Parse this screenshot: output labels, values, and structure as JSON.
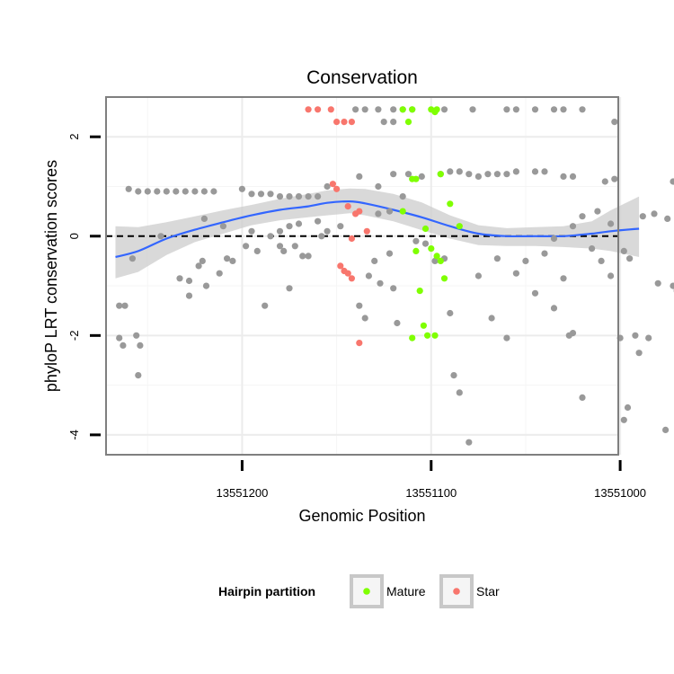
{
  "chart_data": {
    "type": "scatter",
    "title": "Conservation",
    "xlabel": "Genomic Position",
    "ylabel": "phyloP LRT conservation scores",
    "x_reversed": true,
    "xlim": [
      13551272,
      13551001
    ],
    "ylim": [
      -4.4,
      2.8
    ],
    "x_ticks": [
      13551200,
      13551100,
      13551000
    ],
    "x_tick_labels": [
      "13551200",
      "13551100",
      "13551000"
    ],
    "y_ticks": [
      -4,
      -2,
      0,
      2
    ],
    "y_tick_labels": [
      "-4",
      "-2",
      "0",
      "2"
    ],
    "reference_line": {
      "y": 0,
      "style": "dashed"
    },
    "grid": true,
    "legend": {
      "title": "Hairpin partition",
      "placement": "bottom",
      "entries": [
        {
          "label": "Mature",
          "color": "#7fff00"
        },
        {
          "label": "Star",
          "color": "#f8766d"
        }
      ]
    },
    "colors": {
      "other": "#999999",
      "smooth_line": "#3366ff",
      "ribbon": "#cccccc"
    },
    "series": [
      {
        "name": "Other",
        "color": "#999999",
        "points": [
          [
            13551260,
            0.95
          ],
          [
            13551255,
            0.9
          ],
          [
            13551250,
            0.9
          ],
          [
            13551245,
            0.9
          ],
          [
            13551240,
            0.9
          ],
          [
            13551235,
            0.9
          ],
          [
            13551230,
            0.9
          ],
          [
            13551225,
            0.9
          ],
          [
            13551220,
            0.9
          ],
          [
            13551215,
            0.9
          ],
          [
            13551200,
            0.95
          ],
          [
            13551195,
            0.85
          ],
          [
            13551190,
            0.85
          ],
          [
            13551185,
            0.85
          ],
          [
            13551180,
            0.8
          ],
          [
            13551175,
            0.8
          ],
          [
            13551170,
            0.8
          ],
          [
            13551165,
            0.8
          ],
          [
            13551160,
            0.8
          ],
          [
            13551155,
            1.0
          ],
          [
            13551138,
            1.2
          ],
          [
            13551128,
            1.0
          ],
          [
            13551120,
            1.25
          ],
          [
            13551112,
            1.25
          ],
          [
            13551105,
            1.2
          ],
          [
            13551095,
            1.25
          ],
          [
            13551090,
            1.3
          ],
          [
            13551085,
            1.3
          ],
          [
            13551080,
            1.25
          ],
          [
            13551075,
            1.2
          ],
          [
            13551070,
            1.25
          ],
          [
            13551065,
            1.25
          ],
          [
            13551060,
            1.25
          ],
          [
            13551055,
            1.3
          ],
          [
            13551045,
            1.3
          ],
          [
            13551040,
            1.3
          ],
          [
            13551030,
            1.2
          ],
          [
            13551025,
            1.2
          ],
          [
            13551008,
            1.1
          ],
          [
            13551003,
            1.15
          ],
          [
            13551140,
            2.55
          ],
          [
            13551135,
            2.55
          ],
          [
            13551128,
            2.55
          ],
          [
            13551120,
            2.55
          ],
          [
            13551115,
            2.55
          ],
          [
            13551110,
            2.55
          ],
          [
            13551093,
            2.55
          ],
          [
            13551078,
            2.55
          ],
          [
            13551060,
            2.55
          ],
          [
            13551055,
            2.55
          ],
          [
            13551045,
            2.55
          ],
          [
            13551035,
            2.55
          ],
          [
            13551030,
            2.55
          ],
          [
            13551020,
            2.55
          ],
          [
            13551003,
            2.3
          ],
          [
            13551125,
            2.3
          ],
          [
            13551120,
            2.3
          ],
          [
            13551265,
            -2.05
          ],
          [
            13551263,
            -2.2
          ],
          [
            13551256,
            -2.0
          ],
          [
            13551254,
            -2.2
          ],
          [
            13551255,
            -2.8
          ],
          [
            13551265,
            -1.4
          ],
          [
            13551262,
            -1.4
          ],
          [
            13551258,
            -0.45
          ],
          [
            13551243,
            0.0
          ],
          [
            13551233,
            -0.85
          ],
          [
            13551228,
            -1.2
          ],
          [
            13551228,
            -0.9
          ],
          [
            13551223,
            -0.6
          ],
          [
            13551221,
            -0.5
          ],
          [
            13551219,
            -1.0
          ],
          [
            13551212,
            -0.75
          ],
          [
            13551208,
            -0.45
          ],
          [
            13551205,
            -0.5
          ],
          [
            13551198,
            -0.2
          ],
          [
            13551192,
            -0.3
          ],
          [
            13551188,
            -1.4
          ],
          [
            13551180,
            -0.2
          ],
          [
            13551178,
            -0.3
          ],
          [
            13551175,
            -1.05
          ],
          [
            13551172,
            -0.2
          ],
          [
            13551168,
            -0.4
          ],
          [
            13551165,
            -0.4
          ],
          [
            13551158,
            0.0
          ],
          [
            13551155,
            0.1
          ],
          [
            13551220,
            0.35
          ],
          [
            13551210,
            0.2
          ],
          [
            13551195,
            0.1
          ],
          [
            13551185,
            0.0
          ],
          [
            13551180,
            0.1
          ],
          [
            13551175,
            0.2
          ],
          [
            13551170,
            0.25
          ],
          [
            13551160,
            0.3
          ],
          [
            13551148,
            0.2
          ],
          [
            13551138,
            -1.4
          ],
          [
            13551135,
            -1.65
          ],
          [
            13551133,
            -0.8
          ],
          [
            13551130,
            -0.5
          ],
          [
            13551127,
            -0.95
          ],
          [
            13551122,
            -0.35
          ],
          [
            13551120,
            -1.05
          ],
          [
            13551118,
            -1.75
          ],
          [
            13551108,
            -0.1
          ],
          [
            13551103,
            -0.15
          ],
          [
            13551098,
            -0.5
          ],
          [
            13551093,
            -0.45
          ],
          [
            13551090,
            -1.55
          ],
          [
            13551088,
            -2.8
          ],
          [
            13551085,
            -3.15
          ],
          [
            13551080,
            -4.15
          ],
          [
            13551075,
            -0.8
          ],
          [
            13551068,
            -1.65
          ],
          [
            13551065,
            -0.45
          ],
          [
            13551060,
            -2.05
          ],
          [
            13551055,
            -0.75
          ],
          [
            13551050,
            -0.5
          ],
          [
            13551045,
            -1.15
          ],
          [
            13551040,
            -0.35
          ],
          [
            13551035,
            -1.45
          ],
          [
            13551030,
            -0.85
          ],
          [
            13551027,
            -2.0
          ],
          [
            13551025,
            -1.95
          ],
          [
            13551020,
            -3.25
          ],
          [
            13551015,
            -0.25
          ],
          [
            13551010,
            -0.5
          ],
          [
            13551005,
            -0.8
          ],
          [
            13551000,
            -2.05
          ],
          [
            13550998,
            -3.7
          ],
          [
            13550996,
            -3.45
          ],
          [
            13550992,
            -2.0
          ],
          [
            13550990,
            -2.35
          ],
          [
            13550985,
            -2.05
          ],
          [
            13550980,
            -0.95
          ],
          [
            13550976,
            -3.9
          ],
          [
            13550972,
            -1.0
          ],
          [
            13550970,
            -1.1
          ],
          [
            13551035,
            -0.05
          ],
          [
            13551025,
            0.2
          ],
          [
            13551020,
            0.4
          ],
          [
            13551012,
            0.5
          ],
          [
            13551005,
            0.25
          ],
          [
            13550998,
            -0.3
          ],
          [
            13550995,
            -0.45
          ],
          [
            13550988,
            0.4
          ],
          [
            13550982,
            0.45
          ],
          [
            13550975,
            0.35
          ],
          [
            13550972,
            1.1
          ],
          [
            13551128,
            0.45
          ],
          [
            13551122,
            0.5
          ],
          [
            13551115,
            0.8
          ]
        ]
      },
      {
        "name": "Mature",
        "color": "#7fff00",
        "points": [
          [
            13551115,
            2.55
          ],
          [
            13551110,
            2.55
          ],
          [
            13551100,
            2.55
          ],
          [
            13551098,
            2.5
          ],
          [
            13551097,
            2.55
          ],
          [
            13551112,
            2.3
          ],
          [
            13551110,
            1.15
          ],
          [
            13551108,
            1.15
          ],
          [
            13551095,
            1.25
          ],
          [
            13551090,
            0.65
          ],
          [
            13551085,
            0.2
          ],
          [
            13551115,
            0.5
          ],
          [
            13551103,
            0.15
          ],
          [
            13551100,
            -0.25
          ],
          [
            13551097,
            -0.4
          ],
          [
            13551095,
            -0.5
          ],
          [
            13551093,
            -0.85
          ],
          [
            13551108,
            -0.3
          ],
          [
            13551106,
            -1.1
          ],
          [
            13551104,
            -1.8
          ],
          [
            13551102,
            -2.0
          ],
          [
            13551098,
            -2.0
          ],
          [
            13551110,
            -2.05
          ]
        ]
      },
      {
        "name": "Star",
        "color": "#f8766d",
        "points": [
          [
            13551165,
            2.55
          ],
          [
            13551160,
            2.55
          ],
          [
            13551153,
            2.55
          ],
          [
            13551150,
            2.3
          ],
          [
            13551146,
            2.3
          ],
          [
            13551142,
            2.3
          ],
          [
            13551152,
            1.05
          ],
          [
            13551150,
            0.95
          ],
          [
            13551144,
            0.6
          ],
          [
            13551140,
            0.45
          ],
          [
            13551138,
            0.5
          ],
          [
            13551134,
            0.1
          ],
          [
            13551142,
            -0.05
          ],
          [
            13551148,
            -0.6
          ],
          [
            13551146,
            -0.7
          ],
          [
            13551144,
            -0.75
          ],
          [
            13551142,
            -0.85
          ],
          [
            13551138,
            -2.15
          ]
        ]
      }
    ],
    "smooth_line": [
      [
        13551267,
        -0.42
      ],
      [
        13551255,
        -0.3
      ],
      [
        13551240,
        -0.05
      ],
      [
        13551225,
        0.13
      ],
      [
        13551210,
        0.28
      ],
      [
        13551195,
        0.42
      ],
      [
        13551180,
        0.53
      ],
      [
        13551165,
        0.6
      ],
      [
        13551155,
        0.67
      ],
      [
        13551143,
        0.7
      ],
      [
        13551135,
        0.66
      ],
      [
        13551120,
        0.53
      ],
      [
        13551105,
        0.38
      ],
      [
        13551090,
        0.2
      ],
      [
        13551075,
        0.05
      ],
      [
        13551060,
        0.0
      ],
      [
        13551045,
        0.0
      ],
      [
        13551030,
        0.0
      ],
      [
        13551015,
        0.05
      ],
      [
        13551005,
        0.1
      ],
      [
        13550990,
        0.15
      ]
    ],
    "ribbon_upper": [
      [
        13551267,
        0.2
      ],
      [
        13551255,
        0.18
      ],
      [
        13551240,
        0.28
      ],
      [
        13551225,
        0.4
      ],
      [
        13551210,
        0.52
      ],
      [
        13551195,
        0.63
      ],
      [
        13551180,
        0.75
      ],
      [
        13551165,
        0.85
      ],
      [
        13551155,
        0.92
      ],
      [
        13551143,
        0.96
      ],
      [
        13551135,
        0.95
      ],
      [
        13551120,
        0.85
      ],
      [
        13551105,
        0.68
      ],
      [
        13551090,
        0.42
      ],
      [
        13551075,
        0.22
      ],
      [
        13551060,
        0.16
      ],
      [
        13551045,
        0.18
      ],
      [
        13551030,
        0.2
      ],
      [
        13551015,
        0.3
      ],
      [
        13551005,
        0.52
      ],
      [
        13550990,
        0.8
      ]
    ],
    "ribbon_lower": [
      [
        13551267,
        -0.85
      ],
      [
        13551255,
        -0.72
      ],
      [
        13551240,
        -0.38
      ],
      [
        13551225,
        -0.12
      ],
      [
        13551210,
        0.05
      ],
      [
        13551195,
        0.22
      ],
      [
        13551180,
        0.32
      ],
      [
        13551165,
        0.38
      ],
      [
        13551155,
        0.42
      ],
      [
        13551143,
        0.46
      ],
      [
        13551135,
        0.42
      ],
      [
        13551120,
        0.3
      ],
      [
        13551105,
        0.12
      ],
      [
        13551090,
        -0.05
      ],
      [
        13551075,
        -0.18
      ],
      [
        13551060,
        -0.2
      ],
      [
        13551045,
        -0.2
      ],
      [
        13551030,
        -0.22
      ],
      [
        13551015,
        -0.25
      ],
      [
        13551005,
        -0.3
      ],
      [
        13550990,
        -0.42
      ]
    ]
  }
}
